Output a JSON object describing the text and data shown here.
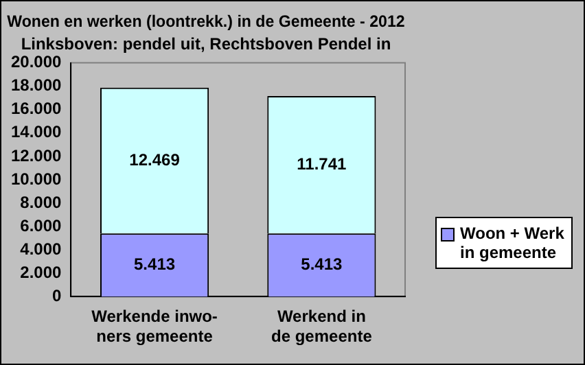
{
  "chart_data": {
    "type": "bar",
    "title": "Wonen en werken (loontrekk.) in de Gemeente - 2012",
    "subtitle": "Linksboven: pendel uit, Rechtsboven Pendel in",
    "categories": [
      "Werkende inwo-\nners gemeente",
      "Werkend in\nde gemeente"
    ],
    "stacked": true,
    "series": [
      {
        "name": "Woon + Werk in gemeente",
        "color": "#9999ff",
        "values": [
          5413,
          5413
        ],
        "value_labels": [
          "5.413",
          "5.413"
        ]
      },
      {
        "color": "#ccffff",
        "values": [
          12469,
          11741
        ],
        "value_labels": [
          "12.469",
          "11.741"
        ]
      }
    ],
    "ylim": [
      0,
      20000
    ],
    "yticks": [
      {
        "value": 0,
        "label": "0"
      },
      {
        "value": 2000,
        "label": "2.000"
      },
      {
        "value": 4000,
        "label": "4.000"
      },
      {
        "value": 6000,
        "label": "6.000"
      },
      {
        "value": 8000,
        "label": "8.000"
      },
      {
        "value": 10000,
        "label": "10.000"
      },
      {
        "value": 12000,
        "label": "12.000"
      },
      {
        "value": 14000,
        "label": "14.000"
      },
      {
        "value": 16000,
        "label": "16.000"
      },
      {
        "value": 18000,
        "label": "18.000"
      },
      {
        "value": 20000,
        "label": "20.000"
      }
    ],
    "grid": false,
    "legend": "right"
  }
}
